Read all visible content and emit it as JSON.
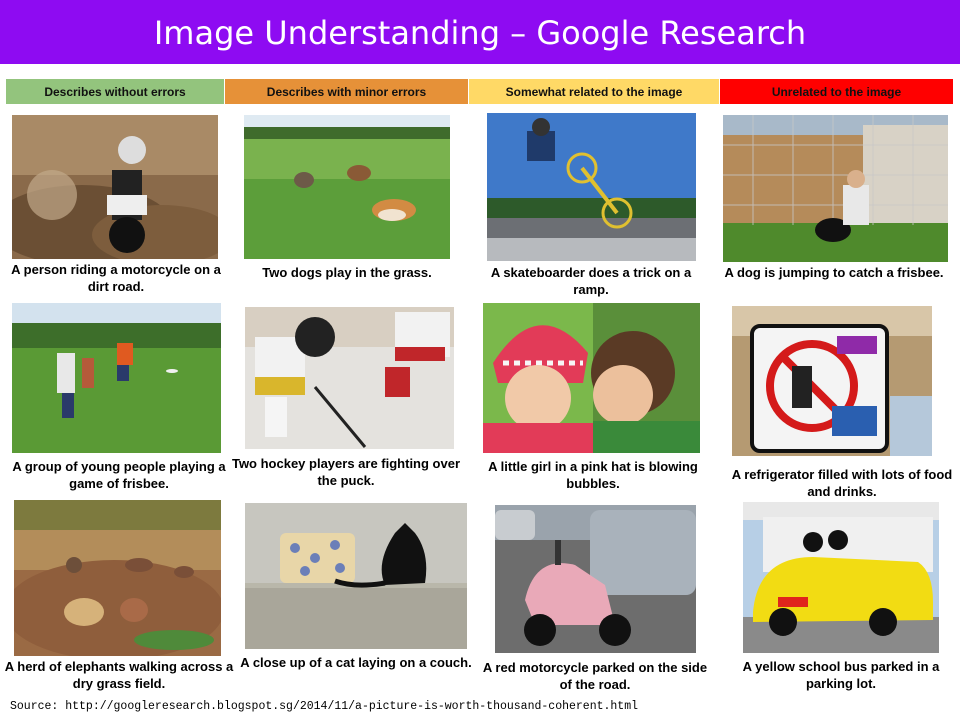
{
  "slide": {
    "title": "Image Understanding – Google Research",
    "source": "Source: http://googleresearch.blogspot.sg/2014/11/a-picture-is-worth-thousand-coherent.html"
  },
  "colors": {
    "title_bar": "#8e0bf2",
    "green": "#93c47d",
    "orange": "#e69138",
    "yellow": "#ffd966",
    "red": "#ff0000"
  },
  "categories": [
    {
      "label": "Describes without errors",
      "color": "#93c47d"
    },
    {
      "label": "Describes with minor errors",
      "color": "#e69138"
    },
    {
      "label": "Somewhat related to the image",
      "color": "#ffd966"
    },
    {
      "label": "Unrelated to the image",
      "color": "#ff0000"
    }
  ],
  "captions": {
    "r1c1": "A person riding a motorcycle on a dirt road.",
    "r1c2": "Two dogs play in the grass.",
    "r1c3": "A skateboarder does a trick on a ramp.",
    "r1c4": "A dog is jumping to catch a frisbee.",
    "r2c1": "A group of young people playing a game of frisbee.",
    "r2c2": "Two hockey players are fighting over the puck.",
    "r2c3": "A little girl in a pink hat is blowing bubbles.",
    "r2c4": "A refrigerator filled with lots of food and drinks.",
    "r3c1": "A herd of elephants walking across a dry grass field.",
    "r3c2": "A close up of a cat laying on a couch.",
    "r3c3": "A red motorcycle parked on the side of the road.",
    "r3c4": "A yellow school bus parked in a parking lot."
  }
}
